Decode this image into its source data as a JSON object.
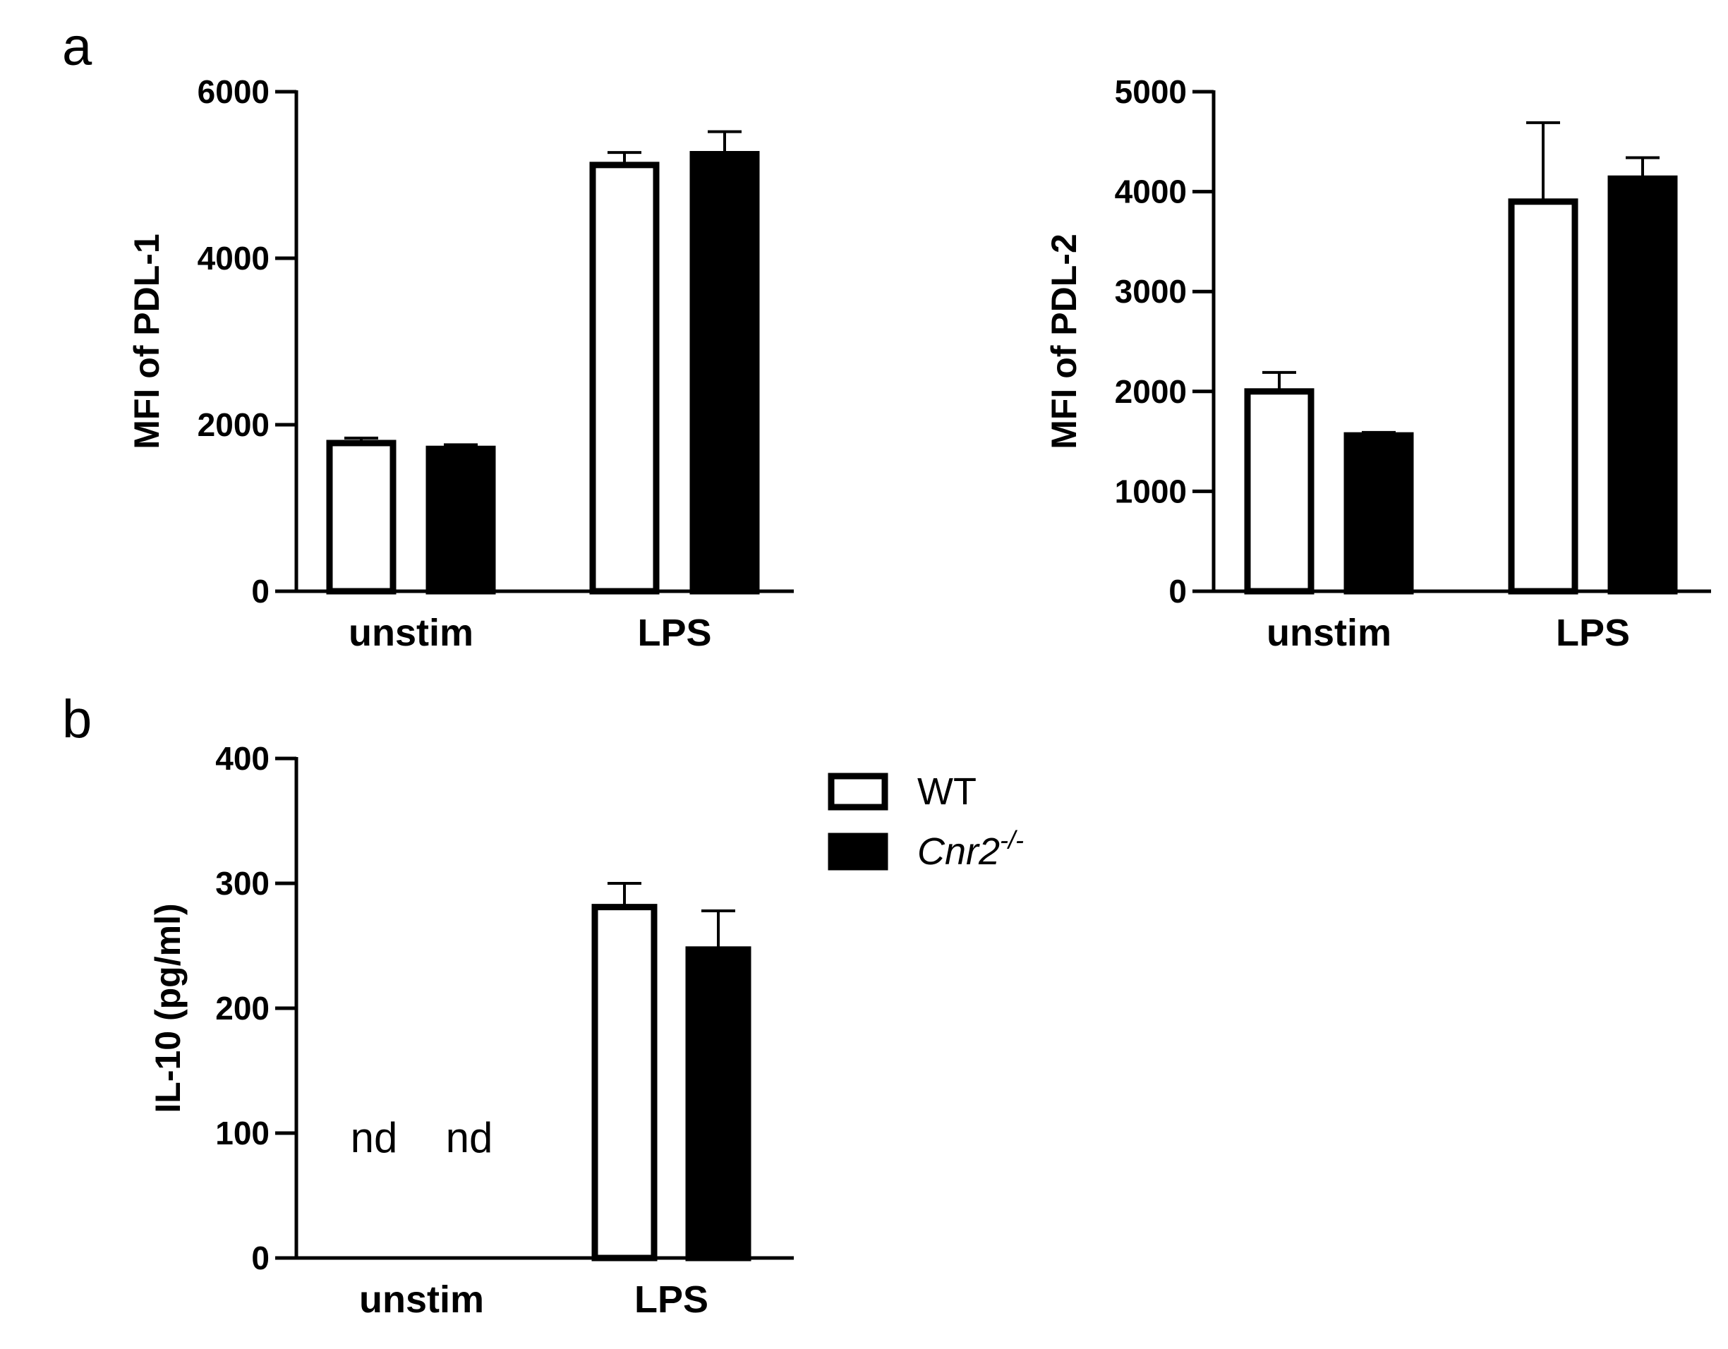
{
  "panel_letters": {
    "a": "a",
    "b": "b"
  },
  "legend": {
    "items": [
      {
        "label": "WT",
        "color": "#ffffff",
        "label_style": "normal"
      },
      {
        "label": "Cnr2",
        "sup": "-/-",
        "color": "#000000",
        "label_style": "italic"
      }
    ]
  },
  "chart_data": [
    {
      "type": "bar",
      "panel": "a",
      "ylabel": "MFI of PDL-1",
      "xlabel": "",
      "ylim": [
        0,
        6000
      ],
      "yticks": [
        0,
        2000,
        4000,
        6000
      ],
      "categories": [
        "unstim",
        "LPS"
      ],
      "series": [
        {
          "name": "WT",
          "color": "#ffffff",
          "values": [
            1780,
            5120
          ],
          "errors": [
            60,
            150
          ]
        },
        {
          "name": "Cnr2-/-",
          "color": "#000000",
          "values": [
            1710,
            5250
          ],
          "errors": [
            50,
            270
          ]
        }
      ],
      "grid": false
    },
    {
      "type": "bar",
      "panel": "a",
      "ylabel": "MFI of PDL-2",
      "xlabel": "",
      "ylim": [
        0,
        5000
      ],
      "yticks": [
        0,
        1000,
        2000,
        3000,
        4000,
        5000
      ],
      "categories": [
        "unstim",
        "LPS"
      ],
      "series": [
        {
          "name": "WT",
          "color": "#ffffff",
          "values": [
            2000,
            3900
          ],
          "errors": [
            190,
            790
          ]
        },
        {
          "name": "Cnr2-/-",
          "color": "#000000",
          "values": [
            1560,
            4130
          ],
          "errors": [
            30,
            210
          ]
        }
      ],
      "grid": false
    },
    {
      "type": "bar",
      "panel": "b",
      "ylabel": "IL-10 (pg/ml)",
      "xlabel": "",
      "ylim": [
        0,
        400
      ],
      "yticks": [
        0,
        100,
        200,
        300,
        400
      ],
      "categories": [
        "unstim",
        "LPS"
      ],
      "series": [
        {
          "name": "WT",
          "color": "#ffffff",
          "values": [
            null,
            281
          ],
          "errors": [
            null,
            19
          ]
        },
        {
          "name": "Cnr2-/-",
          "color": "#000000",
          "values": [
            null,
            247
          ],
          "errors": [
            null,
            31
          ]
        }
      ],
      "annotations": [
        "nd",
        "nd"
      ],
      "grid": false
    }
  ]
}
